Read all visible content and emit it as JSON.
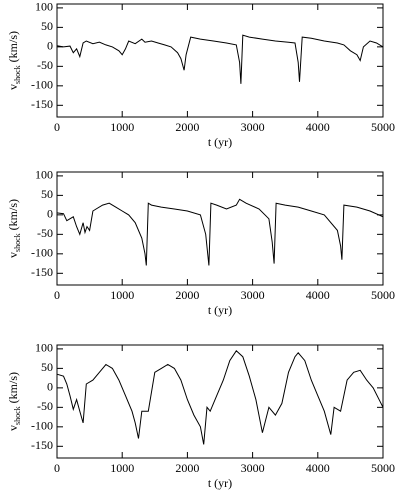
{
  "chart_data": [
    {
      "type": "line",
      "xlabel": "t (yr)",
      "ylabel": {
        "main": "v",
        "sub": "shock",
        "unit": "(km/s)"
      },
      "xlim": [
        0,
        5000
      ],
      "ylim": [
        -180,
        110
      ],
      "xticks": [
        0,
        1000,
        2000,
        3000,
        4000,
        5000
      ],
      "yticks": [
        -150,
        -100,
        -50,
        0,
        50,
        100
      ],
      "series": [
        {
          "color": "#000000",
          "x": [
            0,
            100,
            200,
            250,
            300,
            350,
            400,
            450,
            550,
            650,
            750,
            850,
            950,
            1000,
            1050,
            1100,
            1200,
            1300,
            1350,
            1450,
            1550,
            1650,
            1750,
            1850,
            1900,
            1950,
            1980,
            2050,
            2200,
            2400,
            2600,
            2750,
            2800,
            2820,
            2850,
            2950,
            3150,
            3350,
            3550,
            3650,
            3700,
            3720,
            3760,
            3900,
            4100,
            4300,
            4400,
            4500,
            4600,
            4650,
            4700,
            4800,
            4900,
            5000
          ],
          "values": [
            3,
            0,
            2,
            -15,
            -5,
            -25,
            10,
            15,
            8,
            12,
            5,
            0,
            -10,
            -20,
            -5,
            15,
            8,
            20,
            12,
            15,
            10,
            5,
            0,
            -15,
            -30,
            -60,
            -20,
            25,
            20,
            15,
            10,
            5,
            -40,
            -95,
            30,
            25,
            20,
            15,
            12,
            10,
            -40,
            -90,
            25,
            22,
            15,
            10,
            5,
            -10,
            -20,
            -35,
            0,
            15,
            10,
            0
          ]
        }
      ]
    },
    {
      "type": "line",
      "xlabel": "t (yr)",
      "ylabel": {
        "main": "v",
        "sub": "shock",
        "unit": "(km/s)"
      },
      "xlim": [
        0,
        5000
      ],
      "ylim": [
        -180,
        110
      ],
      "xticks": [
        0,
        1000,
        2000,
        3000,
        4000,
        5000
      ],
      "yticks": [
        -150,
        -100,
        -50,
        0,
        50,
        100
      ],
      "series": [
        {
          "color": "#000000",
          "x": [
            0,
            100,
            150,
            250,
            300,
            350,
            400,
            430,
            460,
            500,
            550,
            600,
            700,
            800,
            900,
            1000,
            1100,
            1200,
            1300,
            1350,
            1370,
            1400,
            1450,
            1600,
            1800,
            2000,
            2200,
            2280,
            2330,
            2360,
            2450,
            2600,
            2750,
            2800,
            2900,
            3100,
            3250,
            3300,
            3330,
            3360,
            3500,
            3700,
            3900,
            4100,
            4300,
            4350,
            4370,
            4400,
            4600,
            4800,
            5000
          ],
          "values": [
            5,
            3,
            -15,
            -5,
            -30,
            -50,
            -20,
            -45,
            -30,
            -40,
            10,
            15,
            25,
            30,
            20,
            10,
            0,
            -20,
            -60,
            -100,
            -130,
            30,
            25,
            20,
            15,
            10,
            0,
            -50,
            -130,
            30,
            25,
            15,
            25,
            40,
            30,
            15,
            -10,
            -70,
            -125,
            30,
            25,
            20,
            10,
            0,
            -40,
            -80,
            -115,
            25,
            20,
            10,
            -5
          ]
        }
      ]
    },
    {
      "type": "line",
      "xlabel": "t (yr)",
      "ylabel": {
        "main": "v",
        "sub": "shock",
        "unit": "(km/s)"
      },
      "xlim": [
        0,
        5000
      ],
      "ylim": [
        -180,
        110
      ],
      "xticks": [
        0,
        1000,
        2000,
        3000,
        4000,
        5000
      ],
      "yticks": [
        -150,
        -100,
        -50,
        0,
        50,
        100
      ],
      "series": [
        {
          "color": "#000000",
          "x": [
            0,
            100,
            150,
            200,
            250,
            300,
            350,
            400,
            450,
            550,
            650,
            750,
            850,
            950,
            1050,
            1150,
            1200,
            1250,
            1300,
            1400,
            1500,
            1600,
            1700,
            1800,
            1900,
            2000,
            2100,
            2200,
            2250,
            2300,
            2350,
            2450,
            2550,
            2650,
            2750,
            2850,
            2950,
            3050,
            3150,
            3250,
            3350,
            3450,
            3550,
            3650,
            3700,
            3800,
            3900,
            4000,
            4100,
            4200,
            4250,
            4350,
            4450,
            4550,
            4650,
            4750,
            4850,
            5000
          ],
          "values": [
            35,
            30,
            10,
            -20,
            -55,
            -30,
            -60,
            -90,
            10,
            20,
            40,
            60,
            50,
            20,
            -20,
            -60,
            -90,
            -130,
            -60,
            -60,
            40,
            50,
            60,
            50,
            20,
            -30,
            -70,
            -100,
            -145,
            -50,
            -60,
            -20,
            20,
            70,
            95,
            80,
            30,
            -30,
            -115,
            -50,
            -70,
            -40,
            40,
            80,
            90,
            70,
            20,
            -20,
            -60,
            -120,
            -50,
            -60,
            20,
            40,
            45,
            20,
            0,
            -50
          ]
        }
      ]
    }
  ]
}
